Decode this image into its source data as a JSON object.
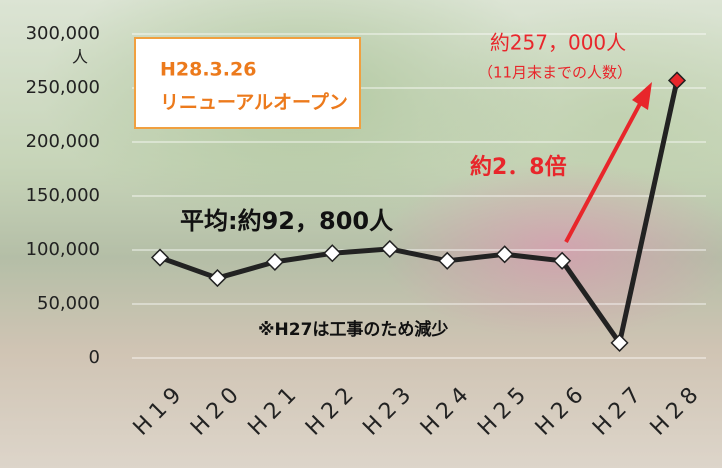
{
  "chart_data": {
    "type": "line",
    "categories": [
      "H19",
      "H20",
      "H21",
      "H22",
      "H23",
      "H24",
      "H25",
      "H26",
      "H27",
      "H28"
    ],
    "values": [
      93000,
      74000,
      89000,
      97000,
      101000,
      90000,
      96000,
      90000,
      14000,
      257000
    ],
    "line_color": "#222222",
    "marker_colors": [
      "#ffffff",
      "#ffffff",
      "#ffffff",
      "#ffffff",
      "#ffffff",
      "#ffffff",
      "#ffffff",
      "#ffffff",
      "#ffffff",
      "#e8262b"
    ],
    "ylim": [
      0,
      300000
    ],
    "yticks": [
      {
        "value": 0,
        "label": "0"
      },
      {
        "value": 50000,
        "label": "50,000"
      },
      {
        "value": 100000,
        "label": "100,000"
      },
      {
        "value": 150000,
        "label": "150,000"
      },
      {
        "value": 200000,
        "label": "200,000"
      },
      {
        "value": 250000,
        "label": "250,000"
      },
      {
        "value": 300000,
        "label": "300,000"
      }
    ],
    "y_unit": "人",
    "grid": true,
    "annotations": {
      "box_line1": "H28.3.26",
      "box_line2": "リニューアルオープン",
      "latest": "約257，000人",
      "latest_note": "（11月末までの人数）",
      "ratio": "約2．8倍",
      "average": "平均:約92，800人",
      "note": "※H27は工事のため減少"
    }
  }
}
